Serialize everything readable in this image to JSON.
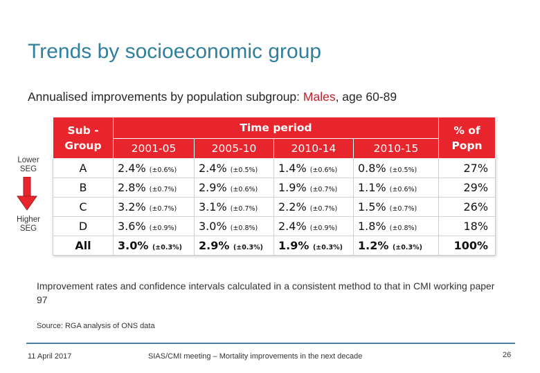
{
  "title": "Trends by socioeconomic group",
  "subtitle": {
    "prefix": "Annualised improvements by population subgroup: ",
    "highlight": "Males",
    "suffix": ", age 60-89"
  },
  "seg_labels": {
    "lower": "Lower SEG",
    "higher": "Higher SEG"
  },
  "table": {
    "header_subgroup": "Sub - Group",
    "header_period": "Time period",
    "header_popn": "% of Popn",
    "periods": [
      "2001-05",
      "2005-10",
      "2010-14",
      "2010-15"
    ],
    "rows": [
      {
        "group": "A",
        "values": [
          [
            "2.4%",
            "(±0.6%)"
          ],
          [
            "2.4%",
            "(±0.5%)"
          ],
          [
            "1.4%",
            "(±0.6%)"
          ],
          [
            "0.8%",
            "(±0.5%)"
          ]
        ],
        "popn": "27%"
      },
      {
        "group": "B",
        "values": [
          [
            "2.8%",
            "(±0.7%)"
          ],
          [
            "2.9%",
            "(±0.6%)"
          ],
          [
            "1.9%",
            "(±0.7%)"
          ],
          [
            "1.1%",
            "(±0.6%)"
          ]
        ],
        "popn": "29%"
      },
      {
        "group": "C",
        "values": [
          [
            "3.2%",
            "(±0.7%)"
          ],
          [
            "3.1%",
            "(±0.7%)"
          ],
          [
            "2.2%",
            "(±0.7%)"
          ],
          [
            "1.5%",
            "(±0.7%)"
          ]
        ],
        "popn": "26%"
      },
      {
        "group": "D",
        "values": [
          [
            "3.6%",
            "(±0.9%)"
          ],
          [
            "3.0%",
            "(±0.8%)"
          ],
          [
            "2.4%",
            "(±0.9%)"
          ],
          [
            "1.8%",
            "(±0.8%)"
          ]
        ],
        "popn": "18%"
      },
      {
        "group": "All",
        "values": [
          [
            "3.0%",
            "(±0.3%)"
          ],
          [
            "2.9%",
            "(±0.3%)"
          ],
          [
            "1.9%",
            "(±0.3%)"
          ],
          [
            "1.2%",
            "(±0.3%)"
          ]
        ],
        "popn": "100%"
      }
    ]
  },
  "note": "Improvement rates and confidence intervals calculated in a consistent method to that in CMI working paper 97",
  "source": "Source: RGA analysis of ONS data",
  "footer": {
    "date": "11 April 2017",
    "center": "SIAS/CMI meeting – Mortality improvements in the next decade",
    "page": "26"
  },
  "colors": {
    "title": "#2f7f9e",
    "header_bg": "#e8242c",
    "highlight": "#c0202a",
    "arrow": "#e8242c",
    "footer_rule": "#4a7fa3"
  },
  "icons": {
    "seg_arrow": "down-arrow-icon"
  }
}
